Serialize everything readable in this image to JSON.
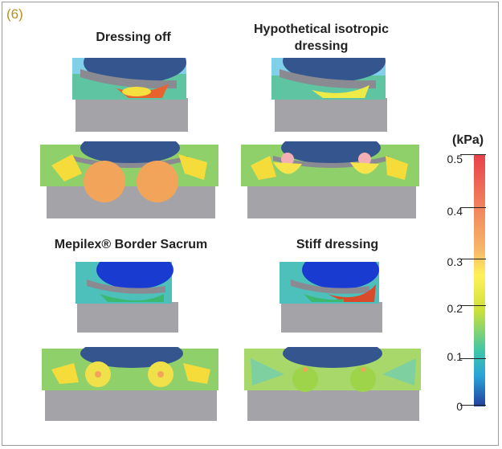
{
  "figure_tag": "(6)",
  "panels": [
    {
      "label": "Dressing off"
    },
    {
      "label": "Hypothetical isotropic dressing"
    },
    {
      "label": "Mepilex® Border Sacrum"
    },
    {
      "label": "Stiff dressing"
    }
  ],
  "colorbar": {
    "unit": "(kPa)",
    "ticks": [
      "0.5",
      "0.4",
      "0.3",
      "0.2",
      "0.1",
      "0"
    ],
    "colors": [
      "#e8404a",
      "#f07a5a",
      "#f6b86a",
      "#fff15a",
      "#cde03a",
      "#3ec6a8",
      "#2aa3d8",
      "#233f9e"
    ]
  }
}
